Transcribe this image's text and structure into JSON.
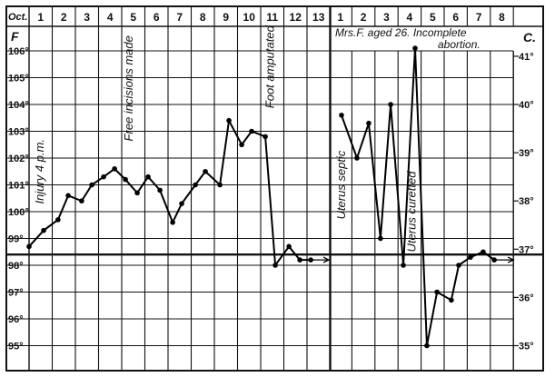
{
  "chart_data": [
    {
      "type": "line",
      "xlabel": "Oct.",
      "ylabel": "F",
      "x_tick_labels": [
        "1",
        "2",
        "3",
        "4",
        "5",
        "6",
        "7",
        "8",
        "9",
        "10",
        "11",
        "12",
        "13"
      ],
      "y_tick_labels": [
        "106°",
        "105°",
        "104°",
        "103°",
        "102°",
        "101°",
        "100°",
        "99°",
        "98°",
        "97°",
        "96°",
        "95°"
      ],
      "ylim": [
        94,
        107
      ],
      "normal_line": 98.4,
      "grid": true,
      "series": [
        {
          "x": [
            1.0,
            1.63,
            2.25,
            2.69,
            3.27,
            3.71,
            4.22,
            4.69,
            5.16,
            5.67,
            6.14,
            6.65,
            7.2,
            7.59,
            8.18,
            8.61,
            9.24,
            9.63,
            10.18,
            10.61,
            11.2,
            11.63,
            12.22,
            12.69,
            13.16
          ],
          "y": [
            98.7,
            99.3,
            99.7,
            100.6,
            100.4,
            101.0,
            101.3,
            101.6,
            101.2,
            100.7,
            101.3,
            100.8,
            99.6,
            100.3,
            101.0,
            101.5,
            101.0,
            103.4,
            102.5,
            103.0,
            102.8,
            98.0,
            98.7,
            98.2,
            98.2
          ],
          "arrow_to": 13.94
        }
      ],
      "annotations": [
        {
          "text": "Injury 4 p.m.",
          "x": 1.5,
          "y": 101.5
        },
        {
          "text": "Free incisions made",
          "x": 5.35,
          "y": 104.6
        },
        {
          "text": "Foot amputated",
          "x": 11.45,
          "y": 105.4
        }
      ]
    },
    {
      "type": "line",
      "title": "Mrs.F. aged 26. Incomplete",
      "title_line2": "abortion.",
      "x_tick_labels": [
        "1",
        "2",
        "3",
        "4",
        "5",
        "6",
        "7",
        "8"
      ],
      "y2label": "C.",
      "y2_tick_labels": [
        "41°",
        "40°",
        "39°",
        "38°",
        "37°",
        "36°",
        "35°"
      ],
      "y2_values_celsius": [
        41,
        40,
        39,
        38,
        37,
        36,
        35
      ],
      "ylim": [
        94,
        107
      ],
      "normal_line": 98.4,
      "grid": true,
      "series": [
        {
          "x": [
            1.55,
            2.22,
            2.73,
            3.24,
            3.68,
            4.23,
            4.74,
            5.25,
            5.69,
            6.31,
            6.63,
            7.14,
            7.69,
            8.17
          ],
          "y": [
            103.6,
            102.0,
            103.3,
            99.0,
            104.0,
            98.0,
            106.1,
            95.0,
            97.0,
            96.7,
            98.0,
            98.3,
            98.5,
            98.2
          ],
          "arrow_to": 9.0
        }
      ],
      "annotations": [
        {
          "text": "Uterus septic",
          "x": 1.6,
          "y": 101.0
        },
        {
          "text": "Uterus curetted",
          "x": 4.65,
          "y": 100.0
        }
      ]
    }
  ]
}
